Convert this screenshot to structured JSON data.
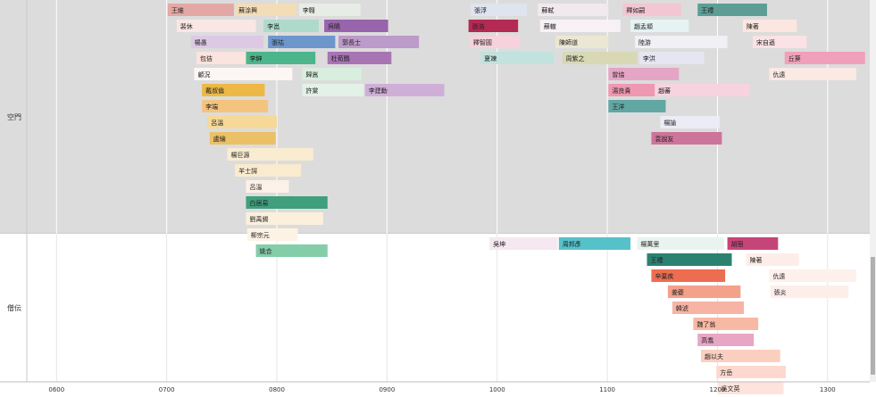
{
  "chart_data": {
    "type": "bar",
    "orientation": "horizontal-timeline",
    "title": "",
    "xlabel": "",
    "ylabel": "",
    "xlim": [
      573,
      1335
    ],
    "xticks": [
      600,
      700,
      800,
      900,
      1000,
      1100,
      1200,
      1300
    ],
    "xtick_labels": [
      "0600",
      "0700",
      "0800",
      "0900",
      "1000",
      "1100",
      "1200",
      "1300"
    ],
    "grid": true,
    "legend": "none",
    "groups": [
      {
        "name": "空門",
        "background": "#dcdcdc",
        "rows": 18,
        "bars": [
          {
            "name": "王維",
            "start": 701,
            "end": 761,
            "row": 0,
            "color": "#e4a8a4"
          },
          {
            "name": "蘇涂興",
            "start": 762,
            "end": 818,
            "row": 0,
            "color": "#f3ddb7"
          },
          {
            "name": "李翱",
            "start": 820,
            "end": 876,
            "row": 0,
            "color": "#e8ece6"
          },
          {
            "name": "張浮",
            "start": 976,
            "end": 1027,
            "row": 0,
            "color": "#dfe4ef"
          },
          {
            "name": "蘇軾",
            "start": 1037,
            "end": 1101,
            "row": 0,
            "color": "#f1e9ee"
          },
          {
            "name": "釋如嗣",
            "start": 1114,
            "end": 1167,
            "row": 0,
            "color": "#f2c6d3"
          },
          {
            "name": "王禮",
            "start": 1182,
            "end": 1245,
            "row": 0,
            "color": "#5c9e96"
          },
          {
            "name": "裴休",
            "start": 709,
            "end": 781,
            "row": 1,
            "color": "#f9e7e4"
          },
          {
            "name": "李邕",
            "start": 788,
            "end": 838,
            "row": 1,
            "color": "#aedacc"
          },
          {
            "name": "呉曉",
            "start": 843,
            "end": 901,
            "row": 1,
            "color": "#9864ab"
          },
          {
            "name": "張浩",
            "start": 974,
            "end": 1019,
            "row": 1,
            "color": "#b32a55"
          },
          {
            "name": "蘇轍",
            "start": 1039,
            "end": 1112,
            "row": 1,
            "color": "#f7f1f6"
          },
          {
            "name": "趙孟頫",
            "start": 1121,
            "end": 1174,
            "row": 1,
            "color": "#e6f3f3"
          },
          {
            "name": "陳著",
            "start": 1223,
            "end": 1272,
            "row": 1,
            "color": "#fce6e0"
          },
          {
            "name": "楊愚",
            "start": 722,
            "end": 788,
            "row": 2,
            "color": "#ddc9e4"
          },
          {
            "name": "張祜",
            "start": 792,
            "end": 853,
            "row": 2,
            "color": "#6d97cc"
          },
          {
            "name": "郭長士",
            "start": 856,
            "end": 929,
            "row": 2,
            "color": "#bc9ac9"
          },
          {
            "name": "釋智圓",
            "start": 975,
            "end": 1021,
            "row": 2,
            "color": "#f6d2dc"
          },
          {
            "name": "陳師道",
            "start": 1053,
            "end": 1101,
            "row": 2,
            "color": "#ebe7d2"
          },
          {
            "name": "陸游",
            "start": 1125,
            "end": 1209,
            "row": 2,
            "color": "#f1f0f5"
          },
          {
            "name": "宋自遜",
            "start": 1232,
            "end": 1281,
            "row": 2,
            "color": "#fae2e6"
          },
          {
            "name": "包佶",
            "start": 727,
            "end": 787,
            "row": 3,
            "color": "#fbe3de"
          },
          {
            "name": "李紳",
            "start": 772,
            "end": 835,
            "row": 3,
            "color": "#4db58c"
          },
          {
            "name": "杜荀鶴",
            "start": 846,
            "end": 904,
            "row": 3,
            "color": "#a774b4"
          },
          {
            "name": "夏竦",
            "start": 985,
            "end": 1051,
            "row": 3,
            "color": "#c1e2dd"
          },
          {
            "name": "周紫之",
            "start": 1059,
            "end": 1127,
            "row": 3,
            "color": "#d8d8b5"
          },
          {
            "name": "李洪",
            "start": 1129,
            "end": 1188,
            "row": 3,
            "color": "#e6e6f2"
          },
          {
            "name": "丘葵",
            "start": 1261,
            "end": 1334,
            "row": 3,
            "color": "#f0a0ba"
          },
          {
            "name": "顧況",
            "start": 725,
            "end": 814,
            "row": 4,
            "color": "#fcf7f5"
          },
          {
            "name": "歸嵩",
            "start": 823,
            "end": 877,
            "row": 4,
            "color": "#d8eede"
          },
          {
            "name": "曾協",
            "start": 1101,
            "end": 1165,
            "row": 4,
            "color": "#e5a5c5"
          },
          {
            "name": "仇遠",
            "start": 1247,
            "end": 1326,
            "row": 4,
            "color": "#fbe9e4"
          },
          {
            "name": "戴叔倫",
            "start": 732,
            "end": 789,
            "row": 5,
            "color": "#edb845"
          },
          {
            "name": "許棠",
            "start": 823,
            "end": 879,
            "row": 5,
            "color": "#e3f1e8"
          },
          {
            "name": "李建勳",
            "start": 880,
            "end": 952,
            "row": 5,
            "color": "#cfafd7"
          },
          {
            "name": "湯良貴",
            "start": 1101,
            "end": 1157,
            "row": 5,
            "color": "#ef98b1"
          },
          {
            "name": "趙蕃",
            "start": 1143,
            "end": 1229,
            "row": 5,
            "color": "#f7d3e0"
          },
          {
            "name": "李端",
            "start": 732,
            "end": 792,
            "row": 6,
            "color": "#f4c47e"
          },
          {
            "name": "王洋",
            "start": 1101,
            "end": 1153,
            "row": 6,
            "color": "#61a7a3"
          },
          {
            "name": "呂溫",
            "start": 737,
            "end": 800,
            "row": 7,
            "color": "#f6d898"
          },
          {
            "name": "楊諭",
            "start": 1148,
            "end": 1202,
            "row": 7,
            "color": "#ececf6"
          },
          {
            "name": "盧綸",
            "start": 739,
            "end": 799,
            "row": 8,
            "color": "#ecc066"
          },
          {
            "name": "袁說友",
            "start": 1140,
            "end": 1204,
            "row": 8,
            "color": "#cd749a"
          },
          {
            "name": "楊巨源",
            "start": 755,
            "end": 833,
            "row": 9,
            "color": "#f9ecd1"
          },
          {
            "name": "羊士諤",
            "start": 762,
            "end": 822,
            "row": 10,
            "color": "#fbebce"
          },
          {
            "name": "呂溫",
            "start": 772,
            "end": 811,
            "row": 11,
            "color": "#fcf1e6"
          },
          {
            "name": "白居易",
            "start": 772,
            "end": 846,
            "row": 12,
            "color": "#409f7d"
          },
          {
            "name": "劉禹錫",
            "start": 772,
            "end": 842,
            "row": 13,
            "color": "#fcf0dd"
          },
          {
            "name": "柳宗元",
            "start": 773,
            "end": 819,
            "row": 14,
            "color": "#fdf3e5"
          },
          {
            "name": "姚合",
            "start": 781,
            "end": 846,
            "row": 15,
            "color": "#84cda9"
          }
        ]
      },
      {
        "name": "僧伝",
        "background": "#ffffff",
        "rows": 12,
        "bars": [
          {
            "name": "吳坤",
            "start": 993,
            "end": 1055,
            "row": 0,
            "color": "#f5e8f0"
          },
          {
            "name": "周邦彥",
            "start": 1056,
            "end": 1121,
            "row": 0,
            "color": "#56c1c9"
          },
          {
            "name": "楊萬里",
            "start": 1127,
            "end": 1206,
            "row": 0,
            "color": "#e9f3ef"
          },
          {
            "name": "胡宿",
            "start": 1209,
            "end": 1255,
            "row": 0,
            "color": "#c64579"
          },
          {
            "name": "王禮",
            "start": 1136,
            "end": 1213,
            "row": 1,
            "color": "#2b8271"
          },
          {
            "name": "陳著",
            "start": 1226,
            "end": 1274,
            "row": 1,
            "color": "#fdede8"
          },
          {
            "name": "辛棄疾",
            "start": 1140,
            "end": 1207,
            "row": 2,
            "color": "#ed6d50"
          },
          {
            "name": "仇遠",
            "start": 1247,
            "end": 1326,
            "row": 2,
            "color": "#fdf0ed"
          },
          {
            "name": "姜夔",
            "start": 1155,
            "end": 1221,
            "row": 3,
            "color": "#f4a18c"
          },
          {
            "name": "張炎",
            "start": 1248,
            "end": 1319,
            "row": 3,
            "color": "#fdeeea"
          },
          {
            "name": "韓淲",
            "start": 1159,
            "end": 1224,
            "row": 4,
            "color": "#f7b4a4"
          },
          {
            "name": "魏了翁",
            "start": 1178,
            "end": 1237,
            "row": 5,
            "color": "#f8b9a4"
          },
          {
            "name": "高翥",
            "start": 1182,
            "end": 1233,
            "row": 6,
            "color": "#e7a6c4"
          },
          {
            "name": "趙以夫",
            "start": 1185,
            "end": 1257,
            "row": 7,
            "color": "#fbcfc0"
          },
          {
            "name": "方岳",
            "start": 1199,
            "end": 1262,
            "row": 8,
            "color": "#fdd8cf"
          },
          {
            "name": "吳文英",
            "start": 1200,
            "end": 1260,
            "row": 9,
            "color": "#fee3dc"
          }
        ]
      }
    ]
  }
}
